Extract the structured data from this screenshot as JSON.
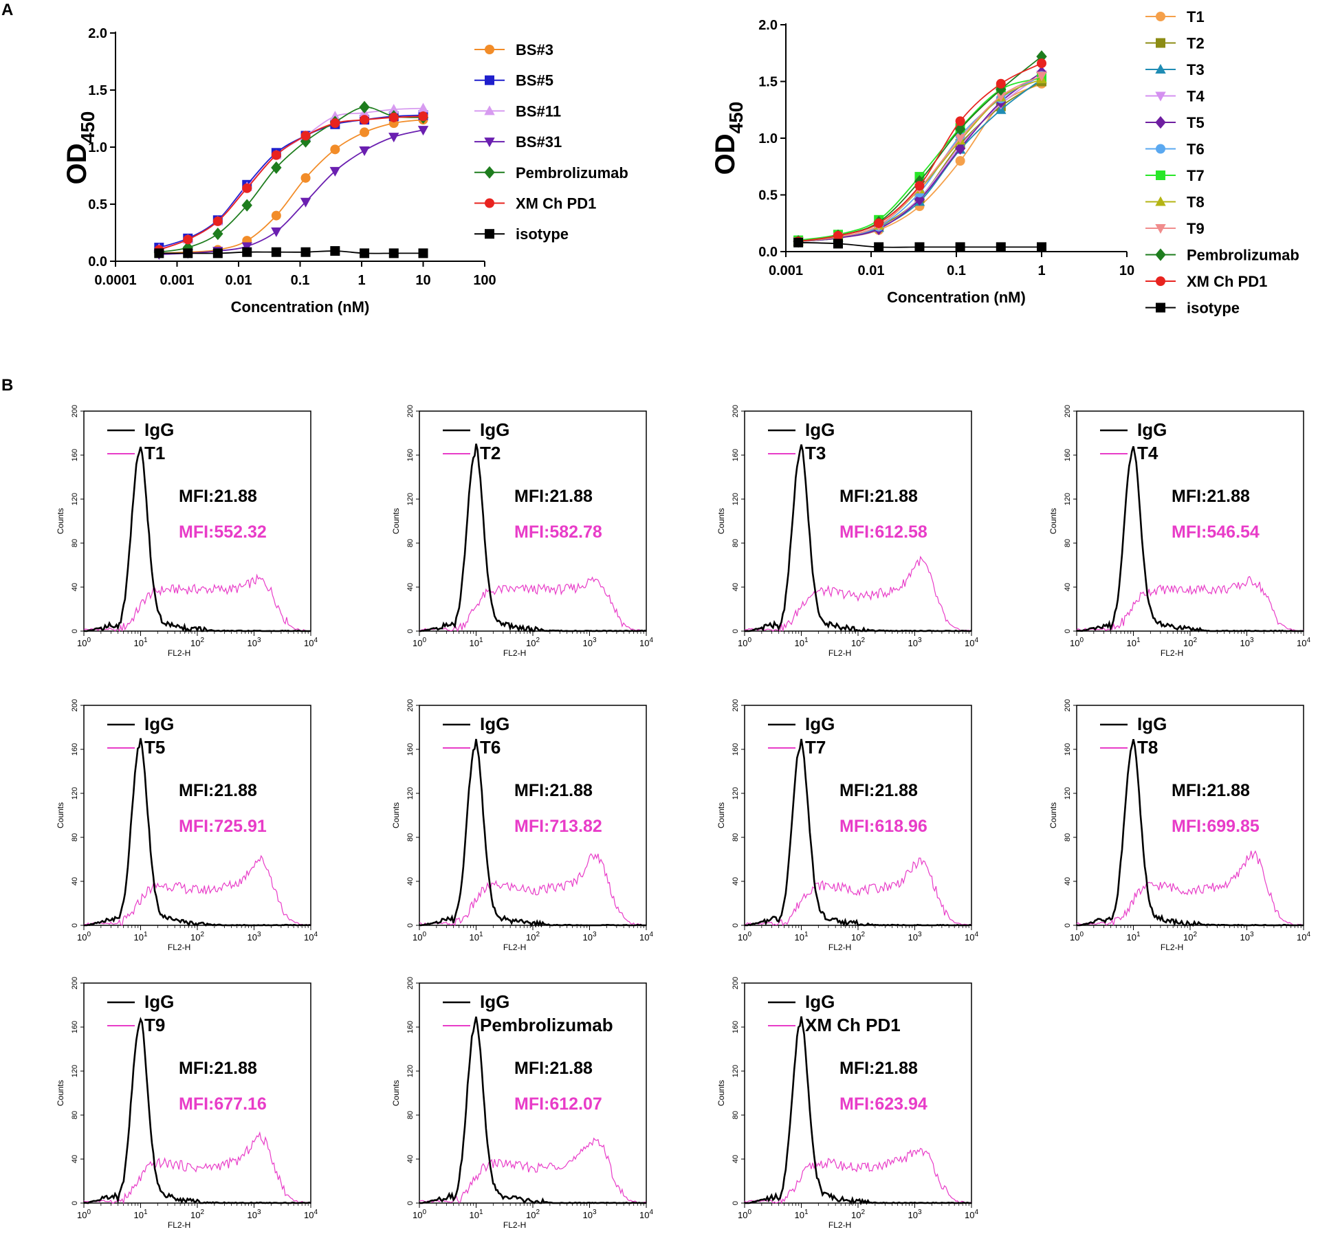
{
  "panel_labels": {
    "a": "A",
    "b": "B"
  },
  "colors": {
    "BS#3": "#F28C28",
    "BS#5": "#1F1FCC",
    "BS#11": "#D79BF0",
    "BS#31": "#6A1FB0",
    "Pembrolizumab": "#1E7D1E",
    "XM Ch PD1": "#E8231F",
    "isotype": "#000000",
    "T1": "#F5A04A",
    "T2": "#8C8C14",
    "T3": "#1F8CB4",
    "T4": "#D490F0",
    "T5": "#6E1EA0",
    "T6": "#5AA8F0",
    "T7": "#28E628",
    "T8": "#B4B414",
    "T9": "#F08C8C",
    "igg": "#000000",
    "sample": "#E83CC8"
  },
  "chart_data": [
    {
      "type": "line",
      "id": "chart-a1",
      "title": "",
      "xlabel": "Concentration (nM)",
      "ylabel": "OD",
      "ylabel_sub": "450",
      "xscale": "log",
      "xlim": [
        0.0001,
        100
      ],
      "ylim": [
        0,
        2.0
      ],
      "xticks": [
        0.0001,
        0.001,
        0.01,
        0.1,
        1,
        10,
        100
      ],
      "xtick_labels": [
        "0.0001",
        "0.001",
        "0.01",
        "0.1",
        "1",
        "10",
        "100"
      ],
      "yticks": [
        0,
        0.5,
        1.0,
        1.5,
        2.0
      ],
      "ytick_labels": [
        "0.0",
        "0.5",
        "1.0",
        "1.5",
        "2.0"
      ],
      "x": [
        0.00051,
        0.0015,
        0.0046,
        0.0137,
        0.041,
        0.123,
        0.37,
        1.11,
        3.33,
        10
      ],
      "legend": "right",
      "series": [
        {
          "name": "BS#3",
          "marker": "circle",
          "values": [
            0.07,
            0.08,
            0.1,
            0.18,
            0.4,
            0.73,
            0.98,
            1.13,
            1.21,
            1.24
          ]
        },
        {
          "name": "BS#5",
          "marker": "square",
          "values": [
            0.12,
            0.2,
            0.36,
            0.67,
            0.95,
            1.1,
            1.2,
            1.24,
            1.27,
            1.28
          ]
        },
        {
          "name": "BS#11",
          "marker": "triangle-up",
          "values": [
            0.11,
            0.19,
            0.35,
            0.65,
            0.93,
            1.1,
            1.27,
            1.3,
            1.33,
            1.34
          ]
        },
        {
          "name": "BS#31",
          "marker": "triangle-down",
          "values": [
            0.06,
            0.07,
            0.09,
            0.13,
            0.26,
            0.52,
            0.79,
            0.97,
            1.09,
            1.15
          ]
        },
        {
          "name": "Pembrolizumab",
          "marker": "diamond",
          "values": [
            0.08,
            0.12,
            0.24,
            0.49,
            0.82,
            1.05,
            1.22,
            1.35,
            1.27,
            1.26
          ]
        },
        {
          "name": "XM Ch PD1",
          "marker": "circle",
          "values": [
            0.1,
            0.19,
            0.35,
            0.64,
            0.93,
            1.1,
            1.21,
            1.24,
            1.26,
            1.27
          ]
        },
        {
          "name": "isotype",
          "marker": "square",
          "values": [
            0.07,
            0.07,
            0.07,
            0.08,
            0.08,
            0.08,
            0.09,
            0.07,
            0.07,
            0.07
          ]
        }
      ]
    },
    {
      "type": "line",
      "id": "chart-a2",
      "title": "",
      "xlabel": "Concentration (nM)",
      "ylabel": "OD",
      "ylabel_sub": "450",
      "xscale": "log",
      "xlim": [
        0.001,
        10
      ],
      "ylim": [
        0,
        2.0
      ],
      "xticks": [
        0.001,
        0.01,
        0.1,
        1,
        10
      ],
      "xtick_labels": [
        "0.001",
        "0.01",
        "0.1",
        "1",
        "10"
      ],
      "yticks": [
        0,
        0.5,
        1.0,
        1.5,
        2.0
      ],
      "ytick_labels": [
        "0.0",
        "0.5",
        "1.0",
        "1.5",
        "2.0"
      ],
      "x": [
        0.0014,
        0.0041,
        0.0123,
        0.037,
        0.111,
        0.333,
        1
      ],
      "legend": "right",
      "series": [
        {
          "name": "T1",
          "marker": "circle",
          "values": [
            0.09,
            0.12,
            0.19,
            0.4,
            0.8,
            1.3,
            1.48
          ]
        },
        {
          "name": "T2",
          "marker": "square",
          "values": [
            0.09,
            0.12,
            0.22,
            0.47,
            0.95,
            1.28,
            1.5
          ]
        },
        {
          "name": "T3",
          "marker": "triangle-up",
          "values": [
            0.09,
            0.12,
            0.21,
            0.44,
            0.9,
            1.25,
            1.52
          ]
        },
        {
          "name": "T4",
          "marker": "triangle-down",
          "values": [
            0.09,
            0.12,
            0.2,
            0.47,
            0.93,
            1.3,
            1.56
          ]
        },
        {
          "name": "T5",
          "marker": "diamond",
          "values": [
            0.09,
            0.12,
            0.2,
            0.46,
            0.91,
            1.32,
            1.58
          ]
        },
        {
          "name": "T6",
          "marker": "circle",
          "values": [
            0.09,
            0.13,
            0.22,
            0.52,
            1.02,
            1.35,
            1.55
          ]
        },
        {
          "name": "T7",
          "marker": "square",
          "values": [
            0.1,
            0.15,
            0.28,
            0.66,
            1.09,
            1.43,
            1.53
          ]
        },
        {
          "name": "T8",
          "marker": "triangle-up",
          "values": [
            0.09,
            0.13,
            0.23,
            0.55,
            0.98,
            1.36,
            1.52
          ]
        },
        {
          "name": "T9",
          "marker": "triangle-down",
          "values": [
            0.09,
            0.13,
            0.23,
            0.56,
            1.0,
            1.37,
            1.55
          ]
        },
        {
          "name": "Pembrolizumab",
          "marker": "diamond",
          "values": [
            0.09,
            0.14,
            0.26,
            0.62,
            1.08,
            1.43,
            1.72
          ]
        },
        {
          "name": "XM Ch PD1",
          "marker": "circle",
          "values": [
            0.09,
            0.14,
            0.25,
            0.58,
            1.15,
            1.48,
            1.66
          ]
        },
        {
          "name": "isotype",
          "marker": "square",
          "values": [
            0.08,
            0.07,
            0.04,
            0.04,
            0.04,
            0.04,
            0.04
          ]
        }
      ]
    },
    {
      "type": "line",
      "id": "flow-histograms",
      "xlabel": "FL2-H",
      "ylabel": "Counts",
      "xscale": "log",
      "xlim": [
        1,
        10000
      ],
      "ylim": [
        0,
        200
      ],
      "yticks": [
        0,
        40,
        80,
        120,
        160,
        200
      ],
      "ytick_labels": [
        "0",
        "40",
        "80",
        "120",
        "160",
        "200"
      ],
      "xticks": [
        1,
        10,
        100,
        1000,
        10000
      ],
      "xtick_base": "10",
      "xtick_exponents": [
        "0",
        "1",
        "2",
        "3",
        "4"
      ],
      "control_label": "IgG",
      "control_mfi": "MFI:21.88",
      "panels": [
        {
          "sample": "T1",
          "mfi": "MFI:552.32",
          "peak_high": 44
        },
        {
          "sample": "T2",
          "mfi": "MFI:582.78",
          "peak_high": 44
        },
        {
          "sample": "T3",
          "mfi": "MFI:612.58",
          "peak_high": 62
        },
        {
          "sample": "T4",
          "mfi": "MFI:546.54",
          "peak_high": 43
        },
        {
          "sample": "T5",
          "mfi": "MFI:725.91",
          "peak_high": 58
        },
        {
          "sample": "T6",
          "mfi": "MFI:713.82",
          "peak_high": 62
        },
        {
          "sample": "T7",
          "mfi": "MFI:618.96",
          "peak_high": 56
        },
        {
          "sample": "T8",
          "mfi": "MFI:699.85",
          "peak_high": 63
        },
        {
          "sample": "T9",
          "mfi": "MFI:677.16",
          "peak_high": 58
        },
        {
          "sample": "Pembrolizumab",
          "mfi": "MFI:612.07",
          "peak_high": 56
        },
        {
          "sample": "XM Ch PD1",
          "mfi": "MFI:623.94",
          "peak_high": 46
        }
      ]
    }
  ]
}
